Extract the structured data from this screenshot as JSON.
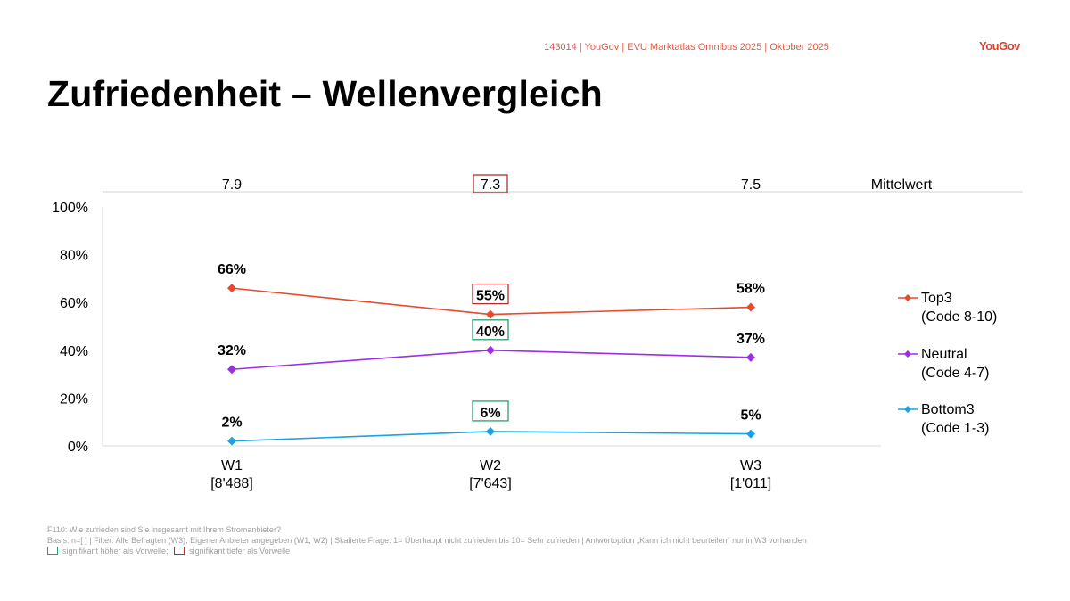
{
  "header": {
    "source": "143014 | YouGov | EVU Marktatlas Omnibus 2025 | Oktober 2025",
    "logo": "YouGov"
  },
  "title": "Zufriedenheit – Wellenvergleich",
  "chart_data": {
    "type": "line",
    "categories": [
      "W1",
      "W2",
      "W3"
    ],
    "category_bases": [
      "[8'488]",
      "[7'643]",
      "[1'011]"
    ],
    "mean_label": "Mittelwert",
    "means": [
      "7.9",
      "7.3",
      "7.5"
    ],
    "mean_highlight": [
      null,
      "lower",
      null
    ],
    "ylim": [
      0,
      100
    ],
    "yticks": [
      "0%",
      "20%",
      "40%",
      "60%",
      "80%",
      "100%"
    ],
    "ytick_values": [
      0,
      20,
      40,
      60,
      80,
      100
    ],
    "series": [
      {
        "name": "Top3",
        "code": "(Code 8-10)",
        "color": "#e8492f",
        "values": [
          66,
          55,
          58
        ],
        "labels": [
          "66%",
          "55%",
          "58%"
        ],
        "highlight": [
          null,
          "lower",
          null
        ]
      },
      {
        "name": "Neutral",
        "code": "(Code 4-7)",
        "color": "#9b2ee8",
        "values": [
          32,
          40,
          37
        ],
        "labels": [
          "32%",
          "40%",
          "37%"
        ],
        "highlight": [
          null,
          "higher",
          null
        ]
      },
      {
        "name": "Bottom3",
        "code": "(Code 1-3)",
        "color": "#1aa3e0",
        "values": [
          2,
          6,
          5
        ],
        "labels": [
          "2%",
          "6%",
          "5%"
        ],
        "highlight": [
          null,
          "higher",
          null
        ]
      }
    ],
    "highlight_colors": {
      "higher": "#2a9d6a",
      "lower": "#a83232"
    }
  },
  "footer": {
    "question": "F110: Wie zufrieden sind Sie insgesamt mit Ihrem Stromanbieter?",
    "basis": "Basis: n=[ ] | Filter: Alle Befragten (W3), Eigener Anbieter angegeben (W1, W2) | Skalierte Frage: 1= Überhaupt nicht zufrieden bis 10= Sehr zufrieden | Antwortoption „Kann ich nicht beurteilen“ nur in W3 vorhanden",
    "legend_higher": "signifikant höher als Vorwelle;",
    "legend_lower": "signifikant tiefer als Vorwelle"
  }
}
